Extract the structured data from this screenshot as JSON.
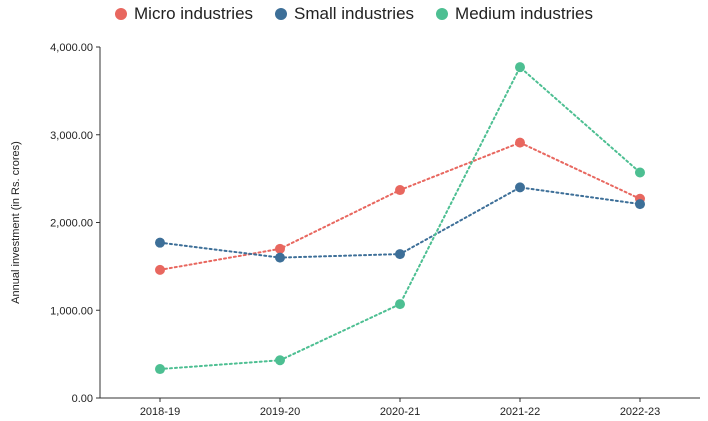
{
  "chart_data": {
    "type": "line",
    "title": "",
    "xlabel": "",
    "ylabel": "Annual investment (in Rs. crores)",
    "categories": [
      "2018-19",
      "2019-20",
      "2020-21",
      "2021-22",
      "2022-23"
    ],
    "ylim": [
      0,
      4000
    ],
    "yticks": [
      0,
      1000,
      2000,
      3000,
      4000
    ],
    "ytick_labels": [
      "0.00",
      "1,000.00",
      "2,000.00",
      "3,000.00",
      "4,000.00"
    ],
    "grid": false,
    "legend_position": "top-center",
    "line_style": "dotted",
    "series": [
      {
        "name": "Micro industries",
        "color": "#e8675f",
        "values": [
          1460,
          1700,
          2370,
          2910,
          2270
        ]
      },
      {
        "name": "Small industries",
        "color": "#3d6f98",
        "values": [
          1770,
          1600,
          1640,
          2400,
          2210
        ]
      },
      {
        "name": "Medium industries",
        "color": "#4dbf92",
        "values": [
          330,
          430,
          1070,
          3770,
          2570
        ]
      }
    ]
  }
}
